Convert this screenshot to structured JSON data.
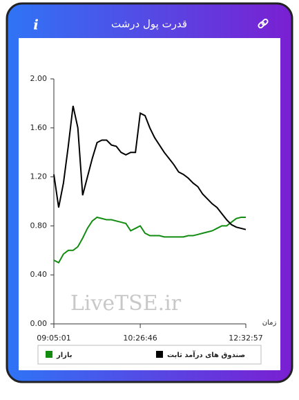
{
  "header": {
    "title": "قدرت پول درشت",
    "info": "i"
  },
  "watermark": "LiveTSE.ir",
  "chart_data": {
    "type": "line",
    "xlabel": "زمان",
    "xlim": [
      0,
      40
    ],
    "xticks": [
      {
        "value": 0,
        "label": "09:05:01"
      },
      {
        "value": 18,
        "label": "10:26:46"
      },
      {
        "value": 40,
        "label": "12:32:57"
      }
    ],
    "ylim": [
      0,
      2
    ],
    "yticks": [
      {
        "value": 0,
        "label": "0.00"
      },
      {
        "value": 0.4,
        "label": "0.40"
      },
      {
        "value": 0.8,
        "label": "0.80"
      },
      {
        "value": 1.2,
        "label": "1.20"
      },
      {
        "value": 1.6,
        "label": "1.60"
      },
      {
        "value": 2,
        "label": "2.00"
      }
    ],
    "grid": false,
    "series": [
      {
        "name": "بازار",
        "color": "#118c11",
        "values": [
          0.52,
          0.5,
          0.57,
          0.6,
          0.6,
          0.63,
          0.7,
          0.78,
          0.84,
          0.87,
          0.86,
          0.85,
          0.85,
          0.84,
          0.83,
          0.82,
          0.76,
          0.78,
          0.8,
          0.74,
          0.72,
          0.72,
          0.72,
          0.71,
          0.71,
          0.71,
          0.71,
          0.71,
          0.72,
          0.72,
          0.73,
          0.74,
          0.75,
          0.76,
          0.78,
          0.8,
          0.8,
          0.83,
          0.86,
          0.87,
          0.87
        ]
      },
      {
        "name": "صندوق های درآمد ثابت",
        "color": "#000000",
        "values": [
          1.22,
          0.95,
          1.15,
          1.45,
          1.78,
          1.6,
          1.05,
          1.2,
          1.35,
          1.48,
          1.5,
          1.5,
          1.46,
          1.45,
          1.4,
          1.38,
          1.4,
          1.4,
          1.72,
          1.7,
          1.6,
          1.52,
          1.46,
          1.4,
          1.35,
          1.3,
          1.24,
          1.22,
          1.19,
          1.15,
          1.12,
          1.06,
          1.02,
          0.98,
          0.95,
          0.9,
          0.85,
          0.81,
          0.79,
          0.78,
          0.77
        ]
      }
    ]
  }
}
